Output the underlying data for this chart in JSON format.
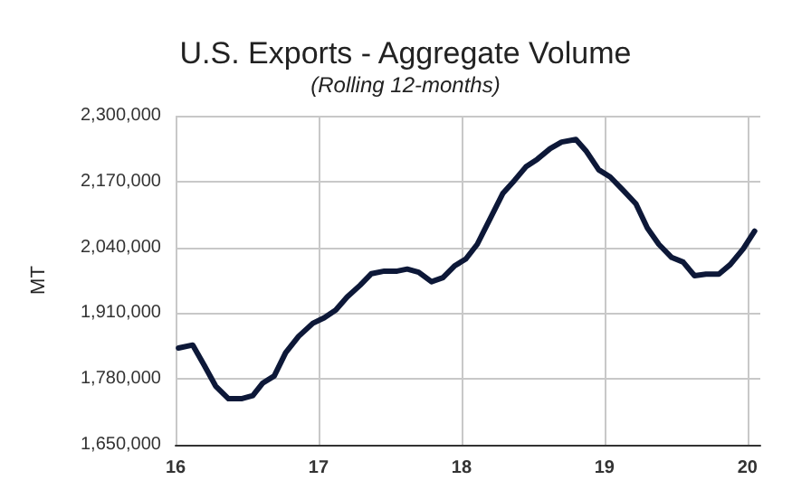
{
  "chart_data": {
    "type": "line",
    "title": "U.S. Exports - Aggregate Volume",
    "subtitle": "(Rolling 12-months)",
    "ylabel": "MT",
    "x": [
      16.02,
      16.12,
      16.2,
      16.28,
      16.37,
      16.46,
      16.54,
      16.61,
      16.69,
      16.77,
      16.86,
      16.96,
      17.04,
      17.12,
      17.2,
      17.29,
      17.37,
      17.46,
      17.55,
      17.62,
      17.7,
      17.79,
      17.87,
      17.95,
      18.03,
      18.11,
      18.19,
      18.29,
      18.37,
      18.45,
      18.53,
      18.62,
      18.7,
      18.8,
      18.87,
      18.96,
      19.04,
      19.13,
      19.22,
      19.3,
      19.38,
      19.47,
      19.55,
      19.63,
      19.71,
      19.8,
      19.88,
      19.97,
      20.05
    ],
    "series": [
      {
        "color": "#0d1838",
        "values": [
          1841000,
          1847000,
          1807000,
          1766000,
          1741000,
          1741000,
          1747000,
          1772000,
          1786000,
          1832000,
          1864000,
          1890000,
          1901000,
          1916000,
          1942000,
          1965000,
          1988000,
          1993000,
          1993000,
          1997000,
          1991000,
          1972000,
          1980000,
          2003000,
          2017000,
          2046000,
          2091000,
          2147000,
          2172000,
          2199000,
          2214000,
          2235000,
          2248000,
          2253000,
          2231000,
          2193000,
          2179000,
          2153000,
          2126000,
          2078000,
          2046000,
          2020000,
          2011000,
          1984000,
          1987000,
          1987000,
          2006000,
          2037000,
          2072000
        ]
      }
    ],
    "xlim": [
      16,
      20.09
    ],
    "xticks": [
      16,
      17,
      18,
      19,
      20
    ],
    "ylim": [
      1650000,
      2300000
    ],
    "yticks": [
      {
        "value": 1650000,
        "label": "1,650,000"
      },
      {
        "value": 1780000,
        "label": "1,780,000"
      },
      {
        "value": 1910000,
        "label": "1,910,000"
      },
      {
        "value": 2040000,
        "label": "2,040,000"
      },
      {
        "value": 2170000,
        "label": "2,170,000"
      },
      {
        "value": 2300000,
        "label": "2,300,000"
      }
    ],
    "grid": true,
    "marker": "none",
    "line_style": "solid"
  }
}
